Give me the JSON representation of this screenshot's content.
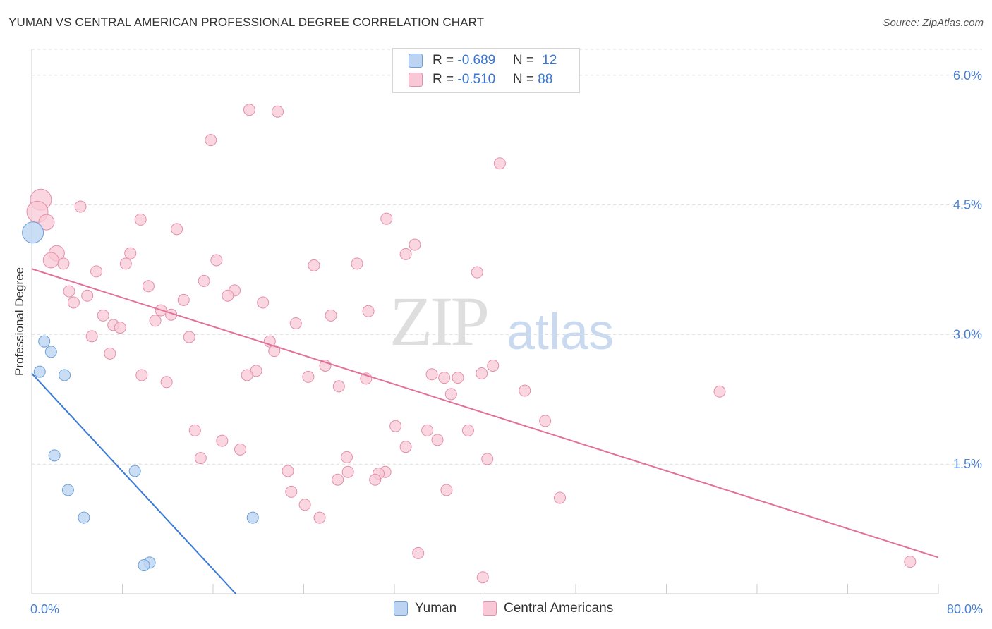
{
  "header": {
    "title": "YUMAN VS CENTRAL AMERICAN PROFESSIONAL DEGREE CORRELATION CHART",
    "source": "Source: ZipAtlas.com"
  },
  "watermark": {
    "zip": "ZIP",
    "atlas": "atlas"
  },
  "legend_top": {
    "rows": [
      {
        "r_label": "R = ",
        "r_value": "-0.689",
        "n_label": "N = ",
        "n_value": "12"
      },
      {
        "r_label": "R = ",
        "r_value": "-0.510",
        "n_label": "N = ",
        "n_value": "88"
      }
    ]
  },
  "legend_bottom": {
    "yuman": "Yuman",
    "central": "Central Americans"
  },
  "colors": {
    "yuman_fill": "#bcd4f2",
    "yuman_stroke": "#6e9fd9",
    "yuman_line": "#3b7ad6",
    "central_fill": "#f8c8d6",
    "central_stroke": "#e48fab",
    "central_line": "#e2709a",
    "grid": "#dddddd",
    "tick_label": "#4a7fd0"
  },
  "chart_data": {
    "type": "scatter",
    "title": "YUMAN VS CENTRAL AMERICAN PROFESSIONAL DEGREE CORRELATION CHART",
    "xlabel": "",
    "ylabel": "Professional Degree",
    "xlim": [
      0,
      80
    ],
    "ylim": [
      0,
      6.3
    ],
    "x_tick_labels": {
      "min": "0.0%",
      "max": "80.0%"
    },
    "y_ticks": [
      {
        "value": 1.5,
        "label": "1.5%"
      },
      {
        "value": 3.0,
        "label": "3.0%"
      },
      {
        "value": 4.5,
        "label": "4.5%"
      },
      {
        "value": 6.0,
        "label": "6.0%"
      }
    ],
    "series": [
      {
        "name": "Yuman",
        "r": -0.689,
        "n": 12,
        "trend": {
          "x": [
            0,
            18
          ],
          "y": [
            2.55,
            0.0
          ]
        },
        "points": [
          {
            "x": 0.1,
            "y": 4.18,
            "size": "large"
          },
          {
            "x": 1.1,
            "y": 2.92
          },
          {
            "x": 1.7,
            "y": 2.8
          },
          {
            "x": 0.7,
            "y": 2.57
          },
          {
            "x": 2.9,
            "y": 2.53
          },
          {
            "x": 2.0,
            "y": 1.6
          },
          {
            "x": 9.1,
            "y": 1.42
          },
          {
            "x": 3.2,
            "y": 1.2
          },
          {
            "x": 4.6,
            "y": 0.88
          },
          {
            "x": 19.5,
            "y": 0.88
          },
          {
            "x": 10.4,
            "y": 0.36
          },
          {
            "x": 9.9,
            "y": 0.33
          }
        ]
      },
      {
        "name": "Central Americans",
        "r": -0.51,
        "n": 88,
        "trend": {
          "x": [
            0,
            80
          ],
          "y": [
            3.76,
            0.42
          ]
        },
        "points": [
          {
            "x": 0.8,
            "y": 4.56,
            "size": "large"
          },
          {
            "x": 0.5,
            "y": 4.42,
            "size": "large"
          },
          {
            "x": 1.3,
            "y": 4.3,
            "size": "medium"
          },
          {
            "x": 2.2,
            "y": 3.94,
            "size": "medium"
          },
          {
            "x": 1.7,
            "y": 3.86,
            "size": "medium"
          },
          {
            "x": 19.2,
            "y": 5.6
          },
          {
            "x": 21.7,
            "y": 5.58
          },
          {
            "x": 15.8,
            "y": 5.25
          },
          {
            "x": 41.3,
            "y": 4.98
          },
          {
            "x": 4.3,
            "y": 4.48
          },
          {
            "x": 9.6,
            "y": 4.33
          },
          {
            "x": 12.8,
            "y": 4.22
          },
          {
            "x": 31.3,
            "y": 4.34
          },
          {
            "x": 33.8,
            "y": 4.04
          },
          {
            "x": 33.0,
            "y": 3.93
          },
          {
            "x": 8.7,
            "y": 3.94
          },
          {
            "x": 8.3,
            "y": 3.82
          },
          {
            "x": 2.8,
            "y": 3.82
          },
          {
            "x": 16.3,
            "y": 3.86
          },
          {
            "x": 24.9,
            "y": 3.8
          },
          {
            "x": 28.7,
            "y": 3.82
          },
          {
            "x": 39.3,
            "y": 3.72
          },
          {
            "x": 5.7,
            "y": 3.73
          },
          {
            "x": 15.2,
            "y": 3.62
          },
          {
            "x": 10.3,
            "y": 3.56
          },
          {
            "x": 3.3,
            "y": 3.5
          },
          {
            "x": 4.9,
            "y": 3.45
          },
          {
            "x": 17.9,
            "y": 3.51
          },
          {
            "x": 17.3,
            "y": 3.45
          },
          {
            "x": 13.4,
            "y": 3.4
          },
          {
            "x": 20.4,
            "y": 3.37
          },
          {
            "x": 3.7,
            "y": 3.37
          },
          {
            "x": 11.4,
            "y": 3.28
          },
          {
            "x": 12.3,
            "y": 3.23
          },
          {
            "x": 6.3,
            "y": 3.22
          },
          {
            "x": 10.9,
            "y": 3.16
          },
          {
            "x": 26.4,
            "y": 3.22
          },
          {
            "x": 29.7,
            "y": 3.27
          },
          {
            "x": 7.2,
            "y": 3.11
          },
          {
            "x": 7.8,
            "y": 3.08
          },
          {
            "x": 23.3,
            "y": 3.13
          },
          {
            "x": 5.3,
            "y": 2.98
          },
          {
            "x": 13.9,
            "y": 2.97
          },
          {
            "x": 21.0,
            "y": 2.92
          },
          {
            "x": 21.4,
            "y": 2.81
          },
          {
            "x": 6.9,
            "y": 2.78
          },
          {
            "x": 25.9,
            "y": 2.64
          },
          {
            "x": 40.7,
            "y": 2.64
          },
          {
            "x": 39.7,
            "y": 2.55
          },
          {
            "x": 19.8,
            "y": 2.58
          },
          {
            "x": 19.0,
            "y": 2.53
          },
          {
            "x": 9.7,
            "y": 2.53
          },
          {
            "x": 24.4,
            "y": 2.51
          },
          {
            "x": 35.3,
            "y": 2.54
          },
          {
            "x": 36.4,
            "y": 2.5
          },
          {
            "x": 37.6,
            "y": 2.5
          },
          {
            "x": 29.5,
            "y": 2.49
          },
          {
            "x": 11.9,
            "y": 2.45
          },
          {
            "x": 27.1,
            "y": 2.4
          },
          {
            "x": 43.5,
            "y": 2.35
          },
          {
            "x": 60.7,
            "y": 2.34
          },
          {
            "x": 37.0,
            "y": 2.31
          },
          {
            "x": 45.3,
            "y": 2.0
          },
          {
            "x": 32.1,
            "y": 1.94
          },
          {
            "x": 14.4,
            "y": 1.89
          },
          {
            "x": 34.9,
            "y": 1.89
          },
          {
            "x": 38.5,
            "y": 1.89
          },
          {
            "x": 35.8,
            "y": 1.78
          },
          {
            "x": 16.8,
            "y": 1.77
          },
          {
            "x": 33.0,
            "y": 1.7
          },
          {
            "x": 18.4,
            "y": 1.67
          },
          {
            "x": 14.9,
            "y": 1.57
          },
          {
            "x": 27.8,
            "y": 1.58
          },
          {
            "x": 40.2,
            "y": 1.56
          },
          {
            "x": 22.6,
            "y": 1.42
          },
          {
            "x": 27.9,
            "y": 1.41
          },
          {
            "x": 31.2,
            "y": 1.41
          },
          {
            "x": 30.6,
            "y": 1.39
          },
          {
            "x": 27.0,
            "y": 1.32
          },
          {
            "x": 30.3,
            "y": 1.32
          },
          {
            "x": 36.6,
            "y": 1.2
          },
          {
            "x": 22.9,
            "y": 1.18
          },
          {
            "x": 46.6,
            "y": 1.11
          },
          {
            "x": 24.1,
            "y": 1.03
          },
          {
            "x": 25.4,
            "y": 0.88
          },
          {
            "x": 34.1,
            "y": 0.47
          },
          {
            "x": 77.5,
            "y": 0.37
          },
          {
            "x": 39.8,
            "y": 0.19
          }
        ]
      }
    ]
  }
}
